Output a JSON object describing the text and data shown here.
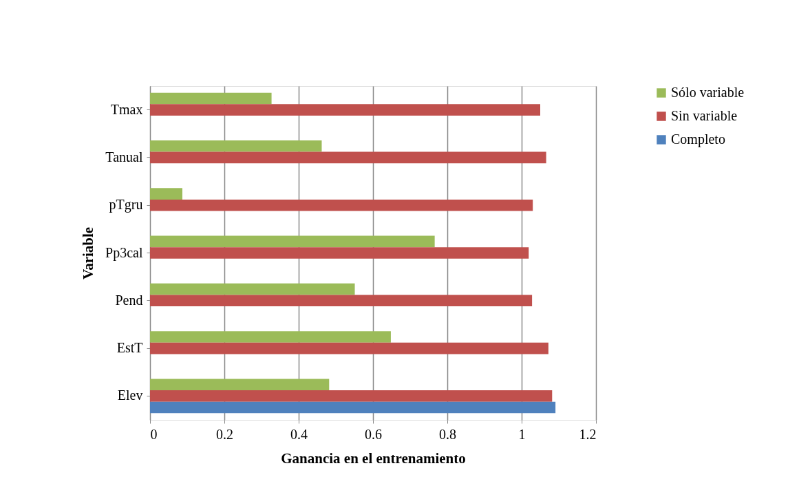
{
  "chart_data": {
    "type": "bar",
    "orientation": "horizontal",
    "xlabel": "Ganancia en el entrenamiento",
    "ylabel": "Variable",
    "categories": [
      "Tmax",
      "Tanual",
      "pTgru",
      "Pp3cal",
      "Pend",
      "EstT",
      "Elev"
    ],
    "series": [
      {
        "name": "Sólo variable",
        "color": "#9bbb59",
        "values": [
          0.327,
          0.462,
          0.087,
          0.766,
          0.551,
          0.648,
          0.482
        ]
      },
      {
        "name": "Sin variable",
        "color": "#c0504d",
        "values": [
          1.05,
          1.066,
          1.03,
          1.019,
          1.028,
          1.072,
          1.082
        ]
      },
      {
        "name": "Completo",
        "color": "#4f81bd",
        "values": [
          null,
          null,
          null,
          null,
          null,
          null,
          1.091
        ]
      }
    ],
    "xlim": [
      0,
      1.2
    ],
    "xticks": [
      0,
      0.2,
      0.4,
      0.6,
      0.8,
      1,
      1.2
    ],
    "grid": "x",
    "legend": "right"
  }
}
